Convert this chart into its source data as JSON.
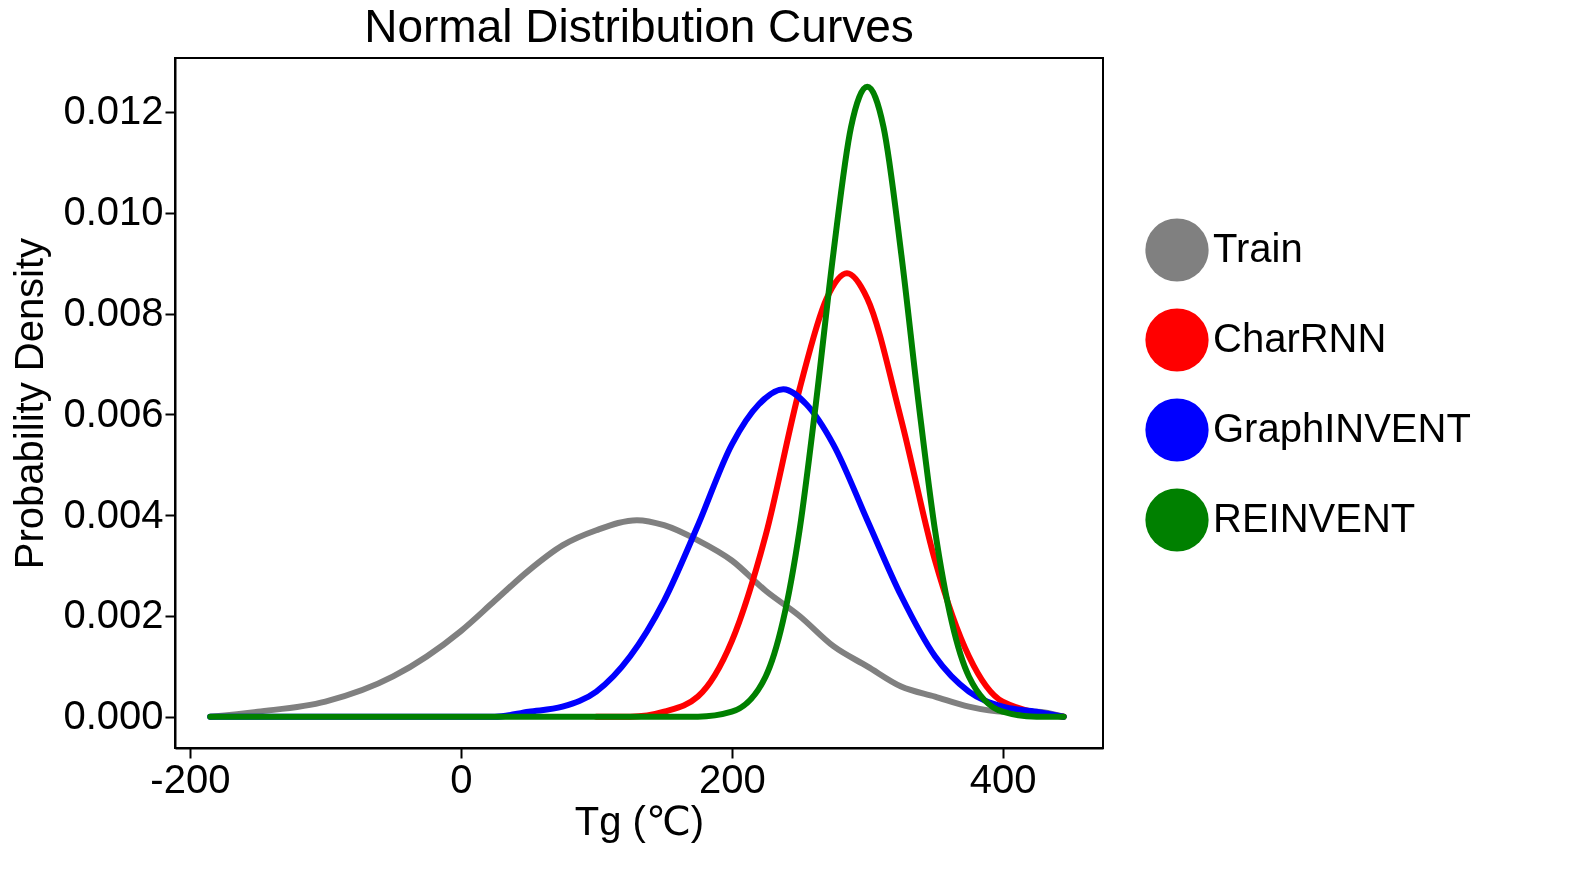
{
  "chart_data": {
    "type": "line",
    "title": "Normal Distribution Curves",
    "xlabel": "Tg (℃)",
    "ylabel": "Probability Density",
    "xlim": [
      -211,
      474
    ],
    "ylim": [
      -0.00062,
      0.01307
    ],
    "xticks": [
      -200,
      0,
      200,
      400
    ],
    "yticks": [
      {
        "value": 0,
        "label": "0.000"
      },
      {
        "value": 0.002,
        "label": "0.002"
      },
      {
        "value": 0.004,
        "label": "0.004"
      },
      {
        "value": 0.006,
        "label": "0.006"
      },
      {
        "value": 0.008,
        "label": "0.008"
      },
      {
        "value": 0.01,
        "label": "0.010"
      },
      {
        "value": 0.012,
        "label": "0.012"
      }
    ],
    "grid": false,
    "legend": "right",
    "line_style": "solid",
    "marker": "none",
    "series": [
      {
        "name": "Train",
        "color": "#808080",
        "x": [
          -185,
          -150,
          -100,
          -50,
          0,
          25,
          50,
          75,
          100,
          130,
          150,
          175,
          200,
          225,
          250,
          275,
          300,
          325,
          350,
          375,
          400,
          425,
          445
        ],
        "values": [
          0,
          0.0001,
          0.0003,
          0.0008,
          0.0017,
          0.0023,
          0.0029,
          0.0034,
          0.0037,
          0.0039,
          0.0038,
          0.0035,
          0.0031,
          0.0025,
          0.002,
          0.0014,
          0.001,
          0.0006,
          0.0004,
          0.0002,
          0.0001,
          0.0001,
          0
        ]
      },
      {
        "name": "CharRNN",
        "color": "#ff0000",
        "x": [
          100,
          125,
          150,
          175,
          200,
          225,
          250,
          270,
          285,
          300,
          325,
          350,
          375,
          400,
          445
        ],
        "values": [
          0,
          0,
          0.0001,
          0.0004,
          0.0015,
          0.0036,
          0.0065,
          0.0083,
          0.0088,
          0.0083,
          0.0059,
          0.0031,
          0.0012,
          0.0003,
          0
        ]
      },
      {
        "name": "GraphINVENT",
        "color": "#0000ff",
        "x": [
          -185,
          0,
          25,
          50,
          75,
          100,
          125,
          150,
          175,
          200,
          220,
          238,
          255,
          275,
          300,
          325,
          350,
          375,
          400,
          425,
          445
        ],
        "values": [
          0,
          0,
          0,
          0.0001,
          0.0002,
          0.0005,
          0.0012,
          0.0023,
          0.0038,
          0.0054,
          0.0062,
          0.0065,
          0.0062,
          0.0054,
          0.0039,
          0.0024,
          0.0012,
          0.0005,
          0.0002,
          0.0001,
          0
        ]
      },
      {
        "name": "REINVENT",
        "color": "#008000",
        "x": [
          -185,
          100,
          175,
          200,
          225,
          250,
          262,
          275,
          288,
          300,
          312,
          325,
          338,
          350,
          375,
          400,
          425,
          445
        ],
        "values": [
          0,
          0,
          0,
          0.0001,
          0.0008,
          0.0037,
          0.0062,
          0.0092,
          0.0117,
          0.0125,
          0.0117,
          0.0092,
          0.0062,
          0.0037,
          0.0008,
          0.0001,
          0,
          0
        ]
      }
    ]
  }
}
